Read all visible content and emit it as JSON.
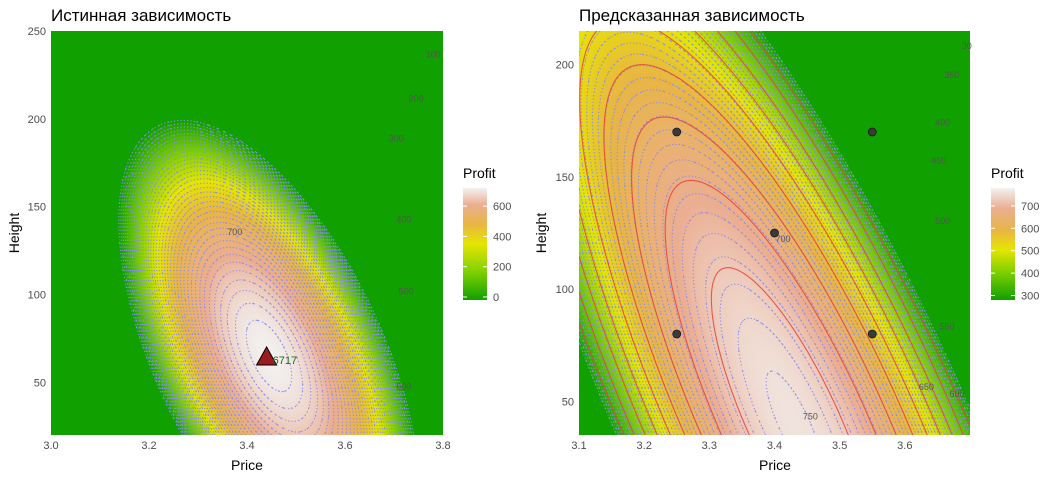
{
  "chart_data": [
    {
      "type": "heatmap",
      "title": "Истинная зависимость",
      "xlabel": "Price",
      "ylabel": "Height",
      "xlim": [
        3.0,
        3.8
      ],
      "ylim": [
        20,
        250
      ],
      "x_ticks": [
        "3.0",
        "3.2",
        "3.4",
        "3.6",
        "3.8"
      ],
      "x_tick_values": [
        3.0,
        3.2,
        3.4,
        3.6,
        3.8
      ],
      "y_ticks": [
        "50",
        "100",
        "150",
        "200",
        "250"
      ],
      "y_tick_values": [
        50,
        100,
        150,
        200,
        250
      ],
      "legend": {
        "title": "Profit",
        "ticks": [
          "600",
          "400",
          "200",
          "0"
        ],
        "tick_values": [
          600,
          400,
          200,
          0
        ],
        "range": [
          -20,
          720
        ],
        "placement": "right"
      },
      "contour_labels": [
        {
          "text": "100",
          "x": 3.78,
          "y": 235
        },
        {
          "text": "200",
          "x": 3.745,
          "y": 210
        },
        {
          "text": "300",
          "x": 3.705,
          "y": 187
        },
        {
          "text": "400",
          "x": 3.72,
          "y": 141
        },
        {
          "text": "500",
          "x": 3.725,
          "y": 100
        },
        {
          "text": "600",
          "x": 3.72,
          "y": 46
        },
        {
          "text": "700",
          "x": 3.375,
          "y": 134
        }
      ],
      "annotation": {
        "text": "6717",
        "x": 3.44,
        "y": 65,
        "marker": "triangle"
      },
      "model": "true"
    },
    {
      "type": "heatmap",
      "title": "Предсказанная зависимость",
      "xlabel": "Price",
      "ylabel": "Height",
      "xlim": [
        3.1,
        3.7
      ],
      "ylim": [
        35,
        215
      ],
      "x_ticks": [
        "3.1",
        "3.2",
        "3.3",
        "3.4",
        "3.5",
        "3.6"
      ],
      "x_tick_values": [
        3.1,
        3.2,
        3.3,
        3.4,
        3.5,
        3.6
      ],
      "y_ticks": [
        "50",
        "100",
        "150",
        "200"
      ],
      "y_tick_values": [
        50,
        100,
        150,
        200
      ],
      "legend": {
        "title": "Profit",
        "ticks": [
          "700",
          "600",
          "500",
          "400",
          "300"
        ],
        "tick_values": [
          700,
          600,
          500,
          400,
          300
        ],
        "range": [
          280,
          780
        ],
        "placement": "right"
      },
      "contour_labels": [
        {
          "text": "30",
          "x": 3.695,
          "y": 207
        },
        {
          "text": "350",
          "x": 3.672,
          "y": 194
        },
        {
          "text": "400",
          "x": 3.658,
          "y": 173
        },
        {
          "text": "450",
          "x": 3.652,
          "y": 156
        },
        {
          "text": "500",
          "x": 3.658,
          "y": 129
        },
        {
          "text": "550",
          "x": 3.665,
          "y": 82
        },
        {
          "text": "600",
          "x": 3.68,
          "y": 52
        },
        {
          "text": "650",
          "x": 3.633,
          "y": 55
        },
        {
          "text": "700",
          "x": 3.413,
          "y": 121
        },
        {
          "text": "750",
          "x": 3.455,
          "y": 42
        }
      ],
      "points": [
        {
          "x": 3.25,
          "y": 170
        },
        {
          "x": 3.55,
          "y": 170
        },
        {
          "x": 3.4,
          "y": 125
        },
        {
          "x": 3.25,
          "y": 80
        },
        {
          "x": 3.55,
          "y": 80
        }
      ],
      "model": "predicted"
    }
  ]
}
